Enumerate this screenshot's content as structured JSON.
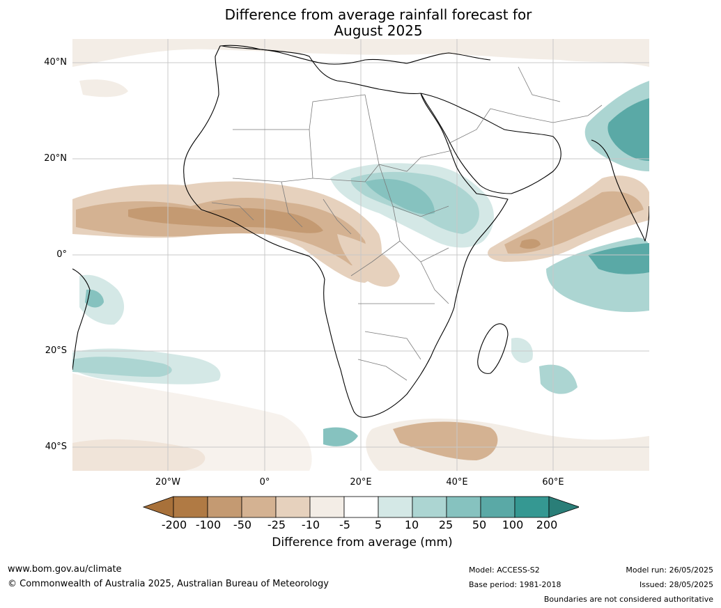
{
  "title": {
    "line1": "Difference from average rainfall forecast for",
    "line2": "August 2025"
  },
  "map": {
    "lat_labels": [
      "40°N",
      "20°N",
      "0°",
      "20°S",
      "40°S"
    ],
    "lon_labels": [
      "20°W",
      "0°",
      "20°E",
      "40°E",
      "60°E"
    ]
  },
  "colorbar": {
    "title": "Difference from average (mm)",
    "ticks": [
      "-200",
      "-100",
      "-50",
      "-25",
      "-10",
      "-5",
      "5",
      "10",
      "25",
      "50",
      "100",
      "200"
    ],
    "colors": [
      "#a8713a",
      "#b07a44",
      "#c49a72",
      "#d4b292",
      "#e6d1bd",
      "#f3ede6",
      "#ffffff",
      "#d4e8e6",
      "#acd5d2",
      "#86c2bf",
      "#5aa9a6",
      "#359892",
      "#2a7e78"
    ]
  },
  "footer": {
    "website": "www.bom.gov.au/climate",
    "copyright": "© Commonwealth of Australia 2025, Australian Bureau of Meteorology",
    "model": "Model: ACCESS-S2",
    "base_period": "Base period: 1981-2018",
    "model_run": "Model run: 26/05/2025",
    "issued": "Issued: 28/05/2025",
    "disclaimer": "Boundaries are not considered authoritative"
  }
}
